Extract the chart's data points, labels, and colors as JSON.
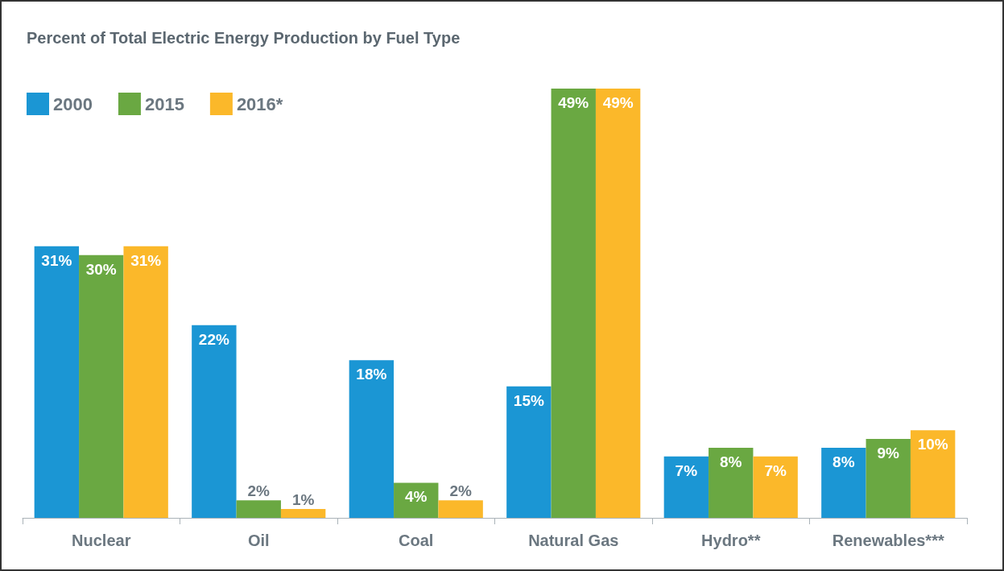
{
  "chart_data": {
    "type": "bar",
    "title": "Percent of Total Electric Energy Production by Fuel Type",
    "categories": [
      "Nuclear",
      "Oil",
      "Coal",
      "Natural Gas",
      "Hydro**",
      "Renewables***"
    ],
    "series": [
      {
        "name": "2000",
        "color": "#1b96d4",
        "values": [
          31,
          22,
          18,
          15,
          7,
          8
        ],
        "value_labels": [
          "31%",
          "22%",
          "18%",
          "15%",
          "7%",
          "8%"
        ]
      },
      {
        "name": "2015",
        "color": "#6aa842",
        "values": [
          30,
          2,
          4,
          49,
          8,
          9
        ],
        "value_labels": [
          "30%",
          "2%",
          "4%",
          "49%",
          "8%",
          "9%"
        ]
      },
      {
        "name": "2016*",
        "color": "#fbb82a",
        "values": [
          31,
          1,
          2,
          49,
          7,
          10
        ],
        "value_labels": [
          "31%",
          "1%",
          "2%",
          "49%",
          "7%",
          "10%"
        ]
      }
    ],
    "legend": "top left"
  }
}
